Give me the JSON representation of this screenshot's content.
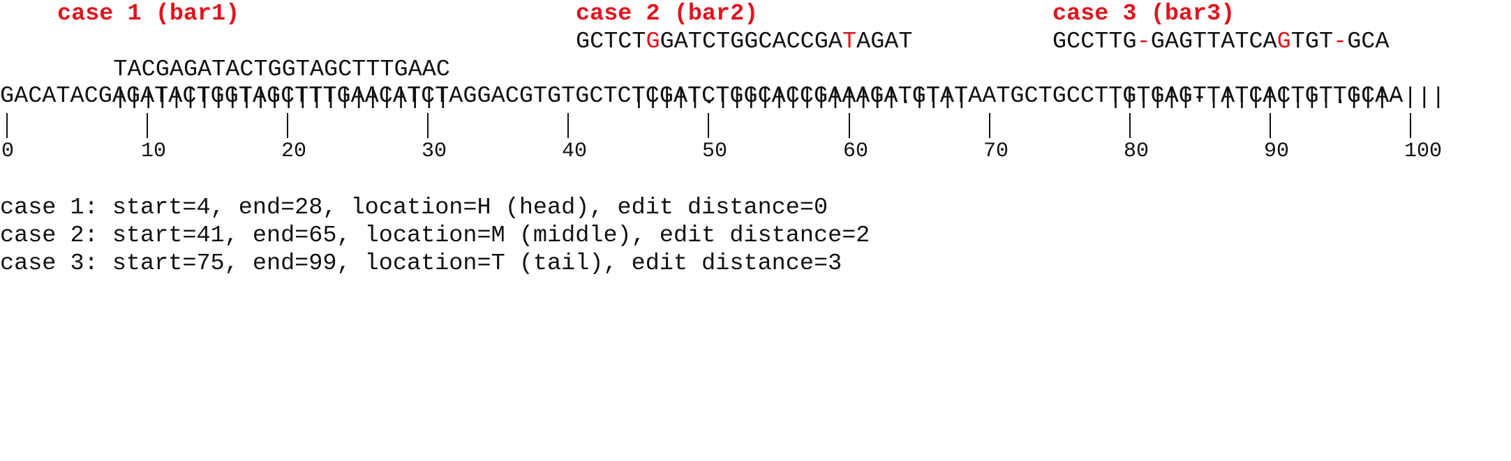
{
  "colors": {
    "highlight": "#e0141e",
    "text": "#111111",
    "background": "#ffffff"
  },
  "cases": [
    {
      "title": "case 1 (bar1)",
      "seq": [
        {
          "t": "TACGAGATACTGGTAGCTTTGAAC",
          "hl": false
        }
      ],
      "match": [
        {
          "t": "||||||||||||||||||||||||",
          "hl": false
        }
      ]
    },
    {
      "title": "case 2 (bar2)",
      "seq": [
        {
          "t": "GCTCT",
          "hl": false
        },
        {
          "t": "G",
          "hl": true
        },
        {
          "t": "GATCTGGCACCGA",
          "hl": false
        },
        {
          "t": "T",
          "hl": true
        },
        {
          "t": "AGAT",
          "hl": false
        }
      ],
      "match": [
        {
          "t": "|||||.|||||||||||||.||||",
          "hl": false
        }
      ]
    },
    {
      "title": "case 3 (bar3)",
      "seq": [
        {
          "t": "GCCTTG",
          "hl": false
        },
        {
          "t": "-",
          "hl": true
        },
        {
          "t": "GAGTTATCA",
          "hl": false
        },
        {
          "t": "G",
          "hl": true
        },
        {
          "t": "TGT",
          "hl": false
        },
        {
          "t": "-",
          "hl": true
        },
        {
          "t": "GCA",
          "hl": false
        }
      ],
      "match": [
        {
          "t": "||||||-|||||||||.|||-|||",
          "hl": false
        }
      ]
    }
  ],
  "reference": "GACATACGAGATACTGGTAGCTTTGAACATCTAGGACGTGTGCTCTCGATCTGGCACCGAAAGATGTATAATGCTGCCTTGTGAGTTATCACTGTTGCAA",
  "ruler": [
    "0",
    "10",
    "20",
    "30",
    "40",
    "50",
    "60",
    "70",
    "80",
    "90",
    "100"
  ],
  "summary": [
    "case 1: start=4, end=28, location=H (head), edit distance=0",
    "case 2: start=41, end=65, location=M (middle), edit distance=2",
    "case 3: start=75, end=99, location=T (tail), edit distance=3"
  ]
}
